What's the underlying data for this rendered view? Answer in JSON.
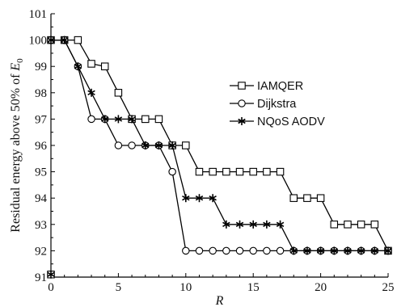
{
  "chart_data": {
    "type": "line",
    "xlabel": "R",
    "ylabel_prefix": "Residual energy above 50% of ",
    "ylabel_symbol": "E",
    "ylabel_sub": "0",
    "xlim": [
      0,
      25
    ],
    "ylim": [
      91,
      101
    ],
    "xticks": [
      0,
      5,
      10,
      15,
      20,
      25
    ],
    "yticks": [
      91,
      92,
      93,
      94,
      95,
      96,
      97,
      98,
      99,
      100,
      101
    ],
    "grid": false,
    "legend_position": "right",
    "series": [
      {
        "name": "IAMQER",
        "marker": "square",
        "x": [
          0,
          1,
          2,
          3,
          4,
          5,
          6,
          7,
          8,
          9,
          10,
          11,
          12,
          13,
          14,
          15,
          16,
          17,
          18,
          19,
          20,
          21,
          22,
          23,
          24,
          25
        ],
        "y": [
          100,
          100,
          100,
          99.1,
          99,
          98,
          97,
          97,
          97,
          96,
          96,
          95,
          95,
          95,
          95,
          95,
          95,
          95,
          94,
          94,
          94,
          93,
          93,
          93,
          93,
          92
        ]
      },
      {
        "name": "Dijkstra",
        "marker": "circle",
        "x": [
          0,
          1,
          2,
          3,
          4,
          5,
          6,
          7,
          8,
          9,
          10,
          11,
          12,
          13,
          14,
          15,
          16,
          17,
          18,
          19,
          20,
          21,
          22,
          23,
          24,
          25
        ],
        "y": [
          100,
          100,
          99,
          97,
          97,
          96,
          96,
          96,
          96,
          95,
          92,
          92,
          92,
          92,
          92,
          92,
          92,
          92,
          92,
          92,
          92,
          92,
          92,
          92,
          92,
          92
        ]
      },
      {
        "name": "NQoS AODV",
        "marker": "star",
        "x": [
          0,
          1,
          2,
          3,
          4,
          5,
          6,
          7,
          8,
          9,
          10,
          11,
          12,
          13,
          14,
          15,
          16,
          17,
          18,
          19,
          20,
          21,
          22,
          23,
          24,
          25
        ],
        "y": [
          100,
          100,
          99,
          98,
          97,
          97,
          97,
          96,
          96,
          96,
          94,
          94,
          94,
          93,
          93,
          93,
          93,
          93,
          92,
          92,
          92,
          92,
          92,
          92,
          92,
          92
        ]
      }
    ],
    "extra_points": [
      {
        "x": 0,
        "y": 91.1
      }
    ]
  }
}
